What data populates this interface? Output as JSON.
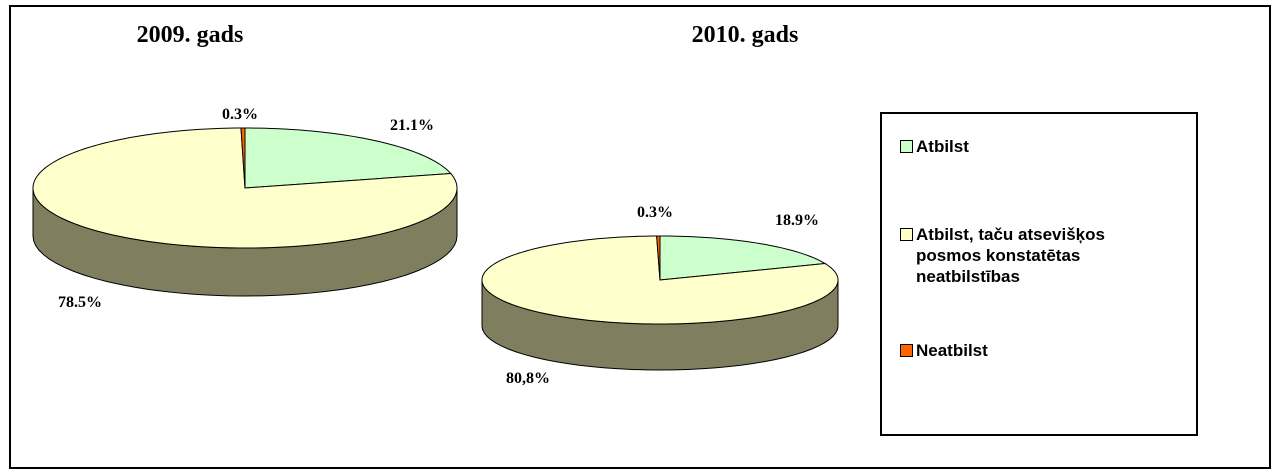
{
  "legend": {
    "labels": [
      "Atbilst",
      "Atbilst, taču atsevišķos posmos konstatētas neatbilstības",
      "Neatbilst"
    ],
    "colors": [
      "#ccffcc",
      "#ffffcc",
      "#ff6600"
    ]
  },
  "side_color": "#7f7f5f",
  "chart_data": [
    {
      "type": "pie3d",
      "title": "2009. gads",
      "values": [
        21.1,
        78.5,
        0.3
      ],
      "value_labels": [
        "21.1%",
        "78.5%",
        "0.3%"
      ]
    },
    {
      "type": "pie3d",
      "title": "2010. gads",
      "values": [
        18.9,
        80.8,
        0.3
      ],
      "value_labels": [
        "18.9%",
        "80,8%",
        "0.3%"
      ]
    }
  ]
}
